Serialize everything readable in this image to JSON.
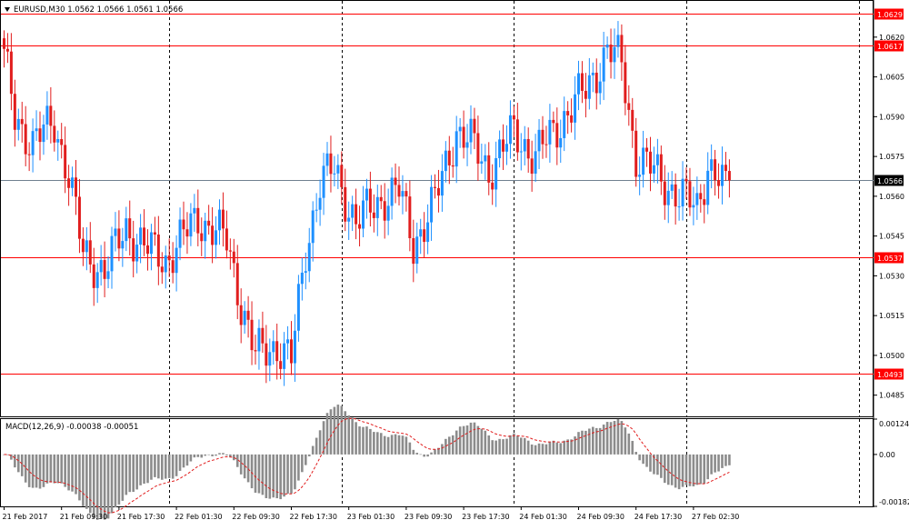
{
  "chart_data": [
    {
      "type": "candlestick",
      "title": "EURUSD,M30  1.0562 1.0566 1.0561 1.0566",
      "timeframe": "M30",
      "symbol": "EURUSD",
      "ohlc_header": "1.0562 1.0566 1.0561 1.0566",
      "ylim": [
        1.0477,
        1.0634
      ],
      "y_ticks": [
        "1.0620",
        "1.0605",
        "1.0590",
        "1.0575",
        "1.0560",
        "1.0545",
        "1.0530",
        "1.0515",
        "1.0500",
        "1.0485"
      ],
      "y_tick_values": [
        1.062,
        1.0605,
        1.059,
        1.0575,
        1.056,
        1.0545,
        1.053,
        1.0515,
        1.05,
        1.0485
      ],
      "x_ticks": [
        "21 Feb 2017",
        "21 Feb 09:30",
        "21 Feb 17:30",
        "22 Feb 01:30",
        "22 Feb 09:30",
        "22 Feb 17:30",
        "23 Feb 01:30",
        "23 Feb 09:30",
        "23 Feb 17:30",
        "24 Feb 01:30",
        "24 Feb 09:30",
        "24 Feb 17:30",
        "27 Feb 02:30"
      ],
      "x_tick_bar_index": [
        0,
        16,
        32,
        48,
        64,
        80,
        96,
        112,
        128,
        144,
        160,
        176,
        192
      ],
      "session_separator_bar_index": [
        46,
        94,
        142,
        190,
        238
      ],
      "current_price": "1.0566",
      "current_price_value": 1.0566,
      "levels": [
        {
          "value": 1.0629,
          "label": "1.0629"
        },
        {
          "value": 1.0617,
          "label": "1.0617"
        },
        {
          "value": 1.0537,
          "label": "1.0537"
        },
        {
          "value": 1.0493,
          "label": "1.0493"
        }
      ],
      "series_waypoints": [
        [
          0,
          1.0612
        ],
        [
          3,
          1.059
        ],
        [
          8,
          1.058
        ],
        [
          14,
          1.0588
        ],
        [
          18,
          1.0568
        ],
        [
          22,
          1.0538
        ],
        [
          28,
          1.0532
        ],
        [
          34,
          1.0548
        ],
        [
          40,
          1.054
        ],
        [
          45,
          1.0536
        ],
        [
          54,
          1.0552
        ],
        [
          62,
          1.0543
        ],
        [
          66,
          1.052
        ],
        [
          70,
          1.05
        ],
        [
          76,
          1.0504
        ],
        [
          80,
          1.0498
        ],
        [
          84,
          1.054
        ],
        [
          88,
          1.0565
        ],
        [
          92,
          1.057
        ],
        [
          98,
          1.055
        ],
        [
          106,
          1.056
        ],
        [
          110,
          1.0562
        ],
        [
          114,
          1.0542
        ],
        [
          120,
          1.0558
        ],
        [
          126,
          1.0585
        ],
        [
          130,
          1.058
        ],
        [
          135,
          1.057
        ],
        [
          142,
          1.0584
        ],
        [
          148,
          1.0575
        ],
        [
          156,
          1.059
        ],
        [
          162,
          1.06
        ],
        [
          168,
          1.0615
        ],
        [
          172,
          1.061
        ],
        [
          176,
          1.0575
        ],
        [
          182,
          1.0568
        ],
        [
          188,
          1.056
        ],
        [
          193,
          1.0556
        ],
        [
          196,
          1.0572
        ],
        [
          201,
          1.0562
        ],
        [
          202,
          1.0566
        ]
      ],
      "colors": {
        "bull": "#1E90FF",
        "bear": "#E11E1E",
        "level": "#FF0000",
        "grid": "#000000"
      }
    },
    {
      "type": "histogram+line",
      "title": "MACD(12,26,9) -0.00038 -0.00051",
      "indicator": "MACD(12,26,9)",
      "values_header": "-0.00038 -0.00051",
      "ylim": [
        -0.00182,
        0.00124
      ],
      "y_ticks": [
        "0.00124",
        "0.00",
        "-0.00182"
      ],
      "y_tick_values": [
        0.00124,
        0.0,
        -0.00182
      ],
      "macd_value": -0.00038,
      "signal_value": -0.00051,
      "colors": {
        "histogram": "#8C8C8C",
        "signal": "#E11E1E"
      }
    }
  ]
}
